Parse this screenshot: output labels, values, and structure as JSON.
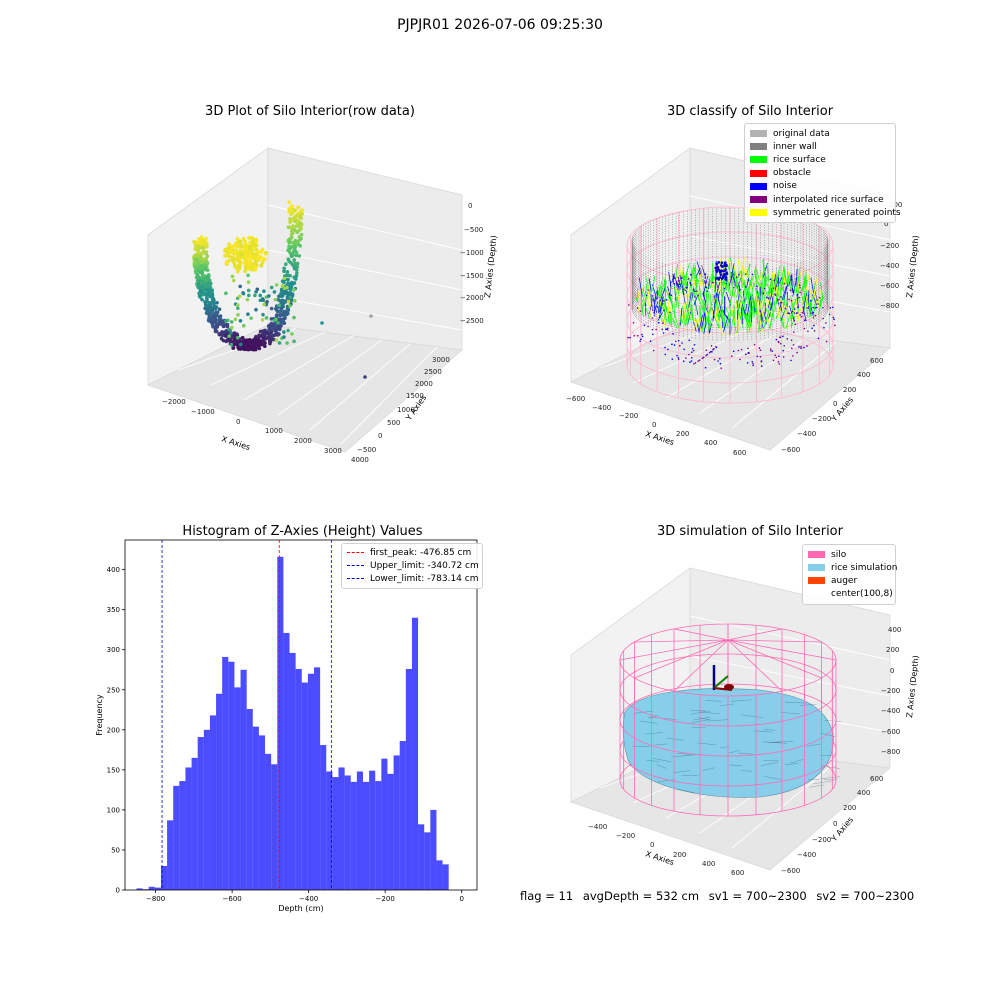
{
  "suptitle": "PJPJR01 2026-07-06 09:25:30",
  "panel1": {
    "title": "3D Plot of Silo Interior(row data)",
    "xlabel": "X Axies",
    "ylabel": "Y Axies",
    "zlabel": "Z Axies (Depth)",
    "xticks": [
      "−2000",
      "−1000",
      "0",
      "1000",
      "2000",
      "3000",
      "4000"
    ],
    "yticks": [
      "−500",
      "0",
      "500",
      "1000",
      "1500",
      "2000",
      "2500",
      "3000"
    ],
    "zticks": [
      "0",
      "−500",
      "−1000",
      "−1500",
      "−2000",
      "−2500"
    ]
  },
  "panel2": {
    "title": "3D classify of Silo Interior",
    "xlabel": "X Axies",
    "ylabel": "Y Axies",
    "zlabel": "Z Axies (Depth)",
    "xticks": [
      "−600",
      "−400",
      "−200",
      "0",
      "200",
      "400",
      "600"
    ],
    "yticks": [
      "−600",
      "−400",
      "−200",
      "0",
      "200",
      "400",
      "600"
    ],
    "zticks": [
      "200",
      "0",
      "−200",
      "−400",
      "−600",
      "−800"
    ],
    "legend": [
      {
        "label": "original data",
        "color": "#b3b3b3"
      },
      {
        "label": "inner wall",
        "color": "#808080"
      },
      {
        "label": "rice surface",
        "color": "#00ff00"
      },
      {
        "label": "obstacle",
        "color": "#ff0000"
      },
      {
        "label": "noise",
        "color": "#0000ff"
      },
      {
        "label": "interpolated rice surface",
        "color": "#800080"
      },
      {
        "label": "symmetric generated points",
        "color": "#ffff00"
      }
    ]
  },
  "panel4": {
    "title": "3D simulation of Silo Interior",
    "xlabel": "X Axies",
    "ylabel": "Y Axies",
    "zlabel": "Z Axies (Depth)",
    "xticks": [
      "−400",
      "−200",
      "0",
      "200",
      "400",
      "600"
    ],
    "yticks": [
      "−600",
      "−400",
      "−200",
      "0",
      "200",
      "400",
      "600"
    ],
    "zticks": [
      "400",
      "200",
      "0",
      "−200",
      "−400",
      "−600",
      "−800"
    ],
    "legend": [
      {
        "label": "silo",
        "color": "#ff69b4"
      },
      {
        "label": "rice simulation",
        "color": "#87ceeb"
      },
      {
        "label": "auger",
        "color": "#ff4500"
      },
      {
        "label": "center(100,8)",
        "color": "#ffffff"
      }
    ]
  },
  "footer": {
    "flag": "flag = 11",
    "avg": "avgDepth = 532 cm",
    "sv1": "sv1 = 700~2300",
    "sv2": "sv2 = 700~2300"
  },
  "chart_data": [
    {
      "type": "histogram",
      "title": "Histogram of Z-Axies (Height) Values",
      "xlabel": "Depth (cm)",
      "ylabel": "Frequency",
      "xlim": [
        -880,
        40
      ],
      "ylim": [
        0,
        437
      ],
      "xticks": [
        -800,
        -600,
        -400,
        -200,
        0
      ],
      "yticks": [
        0,
        50,
        100,
        150,
        200,
        250,
        300,
        350,
        400
      ],
      "bin_start": -850,
      "bin_width": 16,
      "counts": [
        2,
        1,
        4,
        3,
        30,
        87,
        130,
        136,
        153,
        165,
        191,
        200,
        218,
        245,
        291,
        285,
        253,
        275,
        226,
        204,
        193,
        170,
        157,
        416,
        321,
        296,
        276,
        259,
        270,
        278,
        181,
        148,
        141,
        153,
        143,
        135,
        148,
        135,
        149,
        136,
        164,
        145,
        168,
        186,
        276,
        340,
        82,
        72,
        100,
        37,
        32
      ],
      "bar_color": "#0000ff",
      "vlines": [
        {
          "label": "first_peak: -476.85 cm",
          "x": -476.85,
          "color": "#ff0000"
        },
        {
          "label": "Upper_limit: -340.72 cm",
          "x": -340.72,
          "color": "#0000cc"
        },
        {
          "label": "Lower_limit: -783.14 cm",
          "x": -783.14,
          "color": "#0000cc"
        }
      ],
      "legend_position": "upper right"
    }
  ]
}
